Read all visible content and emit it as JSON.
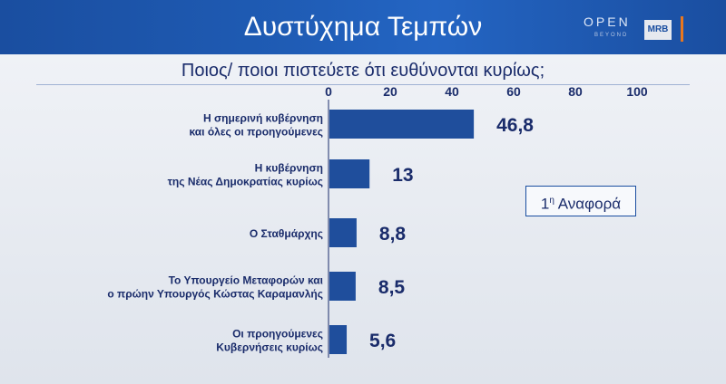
{
  "header": {
    "title": "Δυστύχημα Τεμπών",
    "logo_open": "OPEN",
    "logo_beyond": "BEYOND",
    "logo_mrb": "MRB"
  },
  "question": "Ποιος/ ποιοι πιστεύετε ότι ευθύνονται κυρίως;",
  "note": {
    "sup": "η",
    "number": "1",
    "text": "Αναφορά"
  },
  "colors": {
    "bar": "#1f4e9c",
    "header": "#1f5cb5",
    "accent": "#e8771e"
  },
  "chart_data": {
    "type": "bar",
    "orientation": "horizontal",
    "xlim": [
      0,
      100
    ],
    "ticks": [
      "0",
      "20",
      "40",
      "60",
      "80",
      "100"
    ],
    "tick_values": [
      0,
      20,
      40,
      60,
      80,
      100
    ],
    "categories": [
      [
        "Η σημερινή κυβέρνηση",
        "και όλες οι προηγούμενες"
      ],
      [
        "Η κυβέρνηση",
        "της Νέας Δημοκρατίας κυρίως"
      ],
      [
        "Ο Σταθμάρχης"
      ],
      [
        "Το Υπουργείο Μεταφορών και",
        "ο πρώην Υπουργός Κώστας Καραμανλής"
      ],
      [
        "Οι προηγούμενες",
        "Κυβερνήσεις κυρίως"
      ]
    ],
    "values": [
      46.8,
      13,
      8.8,
      8.5,
      5.6
    ],
    "value_labels": [
      "46,8",
      "13",
      "8,8",
      "8,5",
      "5,6"
    ],
    "grid": false,
    "legend": "none"
  }
}
